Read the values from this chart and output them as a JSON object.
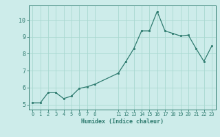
{
  "x": [
    0,
    1,
    2,
    3,
    4,
    5,
    6,
    7,
    8,
    11,
    12,
    13,
    14,
    15,
    16,
    17,
    18,
    19,
    20,
    21,
    22,
    23
  ],
  "y": [
    5.1,
    5.1,
    5.7,
    5.7,
    5.35,
    5.5,
    5.95,
    6.05,
    6.2,
    6.85,
    7.55,
    8.3,
    9.35,
    9.35,
    10.5,
    9.35,
    9.2,
    9.05,
    9.1,
    8.3,
    7.55,
    8.45
  ],
  "line_color": "#2d7a6e",
  "marker_color": "#2d7a6e",
  "bg_color": "#cdecea",
  "grid_color": "#a8d8d0",
  "axis_label_color": "#2d7a6e",
  "tick_color": "#2d7a6e",
  "xlabel": "Humidex (Indice chaleur)",
  "xticks": [
    0,
    1,
    2,
    3,
    4,
    5,
    6,
    7,
    8,
    11,
    12,
    13,
    14,
    15,
    16,
    17,
    18,
    19,
    20,
    21,
    22,
    23
  ],
  "yticks": [
    5,
    6,
    7,
    8,
    9,
    10
  ],
  "ylim": [
    4.7,
    10.85
  ],
  "xlim": [
    -0.5,
    23.5
  ],
  "title": ""
}
